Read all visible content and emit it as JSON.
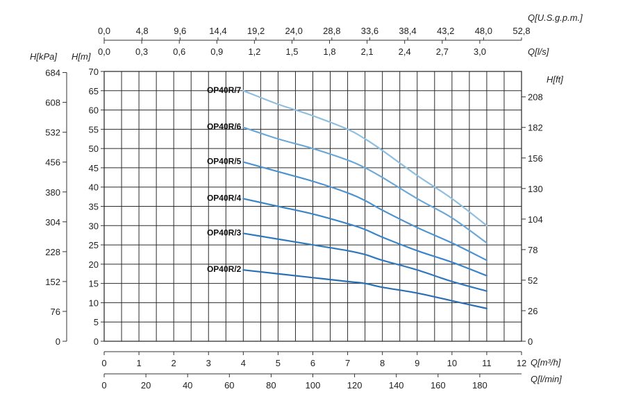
{
  "chart_data": {
    "type": "line",
    "x_unit_label": "Q[m³/h]",
    "x_ticks": [
      0,
      1,
      2,
      3,
      4,
      5,
      6,
      7,
      8,
      9,
      10,
      11,
      12
    ],
    "xlim": [
      0,
      12
    ],
    "y_unit_label": "H[m]",
    "y_ticks": [
      0,
      5,
      10,
      15,
      20,
      25,
      30,
      35,
      40,
      45,
      50,
      55,
      60,
      65,
      70
    ],
    "ylim": [
      0,
      70
    ],
    "grid": true,
    "secondary_axes": {
      "top_outer": {
        "label": "Q[U.S.g.p.m.]",
        "ticks": [
          "0,0",
          "4,8",
          "9,6",
          "14,4",
          "19,2",
          "24,0",
          "28,8",
          "33,6",
          "38,4",
          "43,2",
          "48,0",
          "52,8"
        ]
      },
      "top_inner": {
        "label": "Q[l/s]",
        "ticks": [
          "0,0",
          "0,3",
          "0,6",
          "0,9",
          "1,2",
          "1,5",
          "1,8",
          "2,1",
          "2,4",
          "2,7",
          "3,0"
        ]
      },
      "left_outer": {
        "label": "H[kPa]",
        "ticks": [
          "0",
          "76",
          "152",
          "228",
          "304",
          "380",
          "456",
          "532",
          "608",
          "684"
        ]
      },
      "right": {
        "label": "H[ft]",
        "ticks": [
          "0",
          "26",
          "52",
          "78",
          "104",
          "130",
          "156",
          "182",
          "208"
        ]
      },
      "bottom_secondary": {
        "label": "Q[l/min]",
        "ticks": [
          "0",
          "20",
          "40",
          "60",
          "80",
          "100",
          "120",
          "140",
          "160",
          "180"
        ]
      }
    },
    "series": [
      {
        "name": "OP40R/7",
        "color": "#8fbfe0",
        "x": [
          4,
          5,
          6,
          7,
          7.5,
          8,
          9,
          10,
          11
        ],
        "y": [
          65,
          61.5,
          58.5,
          55,
          52.5,
          49.5,
          43,
          37,
          30
        ]
      },
      {
        "name": "OP40R/6",
        "color": "#6ba8d8",
        "x": [
          4,
          5,
          6,
          7,
          7.5,
          8,
          9,
          10,
          11
        ],
        "y": [
          55.5,
          52.5,
          50,
          47,
          45,
          42.5,
          37,
          32,
          25.5
        ]
      },
      {
        "name": "OP40R/5",
        "color": "#4b92cf",
        "x": [
          4,
          5,
          6,
          7,
          7.5,
          8,
          9,
          10,
          11
        ],
        "y": [
          46.5,
          44,
          41.5,
          38.5,
          36.5,
          34,
          29.5,
          25.5,
          21
        ]
      },
      {
        "name": "OP40R/4",
        "color": "#3a84c8",
        "x": [
          4,
          5,
          6,
          7,
          7.5,
          8,
          9,
          10,
          11
        ],
        "y": [
          37,
          35,
          33,
          30.5,
          29,
          27,
          23.5,
          20.5,
          17
        ]
      },
      {
        "name": "OP40R/3",
        "color": "#2f78be",
        "x": [
          4,
          5,
          6,
          7,
          7.5,
          8,
          9,
          10,
          11
        ],
        "y": [
          28,
          26.5,
          25,
          23.5,
          22.5,
          21,
          18.5,
          15.5,
          13
        ]
      },
      {
        "name": "OP40R/2",
        "color": "#2a6fb4",
        "x": [
          4,
          5,
          6,
          7,
          7.5,
          8,
          9,
          10,
          11
        ],
        "y": [
          18.5,
          17.5,
          16.5,
          15.5,
          15,
          14,
          12.5,
          10.5,
          8.5
        ]
      }
    ]
  }
}
